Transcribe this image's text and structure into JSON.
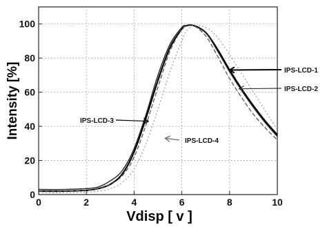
{
  "chart_data": {
    "type": "line",
    "xlabel": "Vdisp [ v ]",
    "ylabel": "Intensity [%]",
    "xlim": [
      0,
      10
    ],
    "ylim": [
      0,
      110
    ],
    "x_ticks": [
      0,
      2,
      4,
      6,
      8,
      10
    ],
    "y_ticks": [
      0,
      20,
      40,
      60,
      80,
      100
    ],
    "grid": true,
    "series": [
      {
        "name": "IPS-LCD-1",
        "color": "#000000",
        "x": [
          0,
          1,
          2,
          2.5,
          3,
          3.5,
          4,
          4.5,
          5,
          5.5,
          6,
          6.2,
          6.5,
          7,
          7.5,
          8,
          8.5,
          9,
          9.5,
          10
        ],
        "values": [
          2,
          2,
          2.5,
          3.5,
          6,
          12,
          25,
          45,
          67,
          86,
          97,
          99,
          99,
          95,
          85,
          73,
          62,
          52,
          43,
          35
        ]
      },
      {
        "name": "IPS-LCD-2",
        "color": "#555555",
        "x": [
          0,
          1,
          2,
          2.5,
          3,
          3.5,
          4,
          4.5,
          5,
          5.5,
          6,
          6.2,
          6.5,
          7,
          7.5,
          8,
          8.5,
          9,
          9.5,
          10
        ],
        "values": [
          2,
          2,
          2.5,
          3.5,
          6,
          11,
          22,
          41,
          63,
          84,
          97,
          99,
          99,
          93,
          81,
          68,
          57,
          47,
          39,
          32
        ]
      },
      {
        "name": "IPS-LCD-3",
        "color": "#222222",
        "x": [
          0,
          1,
          2,
          2.5,
          3,
          3.5,
          4,
          4.5,
          5,
          5.5,
          6,
          6.2,
          6.5,
          7,
          7.5,
          8,
          8.5,
          9,
          9.5,
          10
        ],
        "values": [
          3,
          3,
          3.5,
          4.5,
          8,
          14,
          27,
          47,
          70,
          88,
          98,
          99,
          99,
          95,
          84,
          72,
          61,
          51,
          42,
          34
        ]
      },
      {
        "name": "IPS-LCD-4",
        "color": "#9a9a9a",
        "x": [
          0,
          1,
          2,
          2.5,
          3,
          3.5,
          4,
          4.5,
          5,
          5.5,
          6,
          6.2,
          6.5,
          7,
          7.5,
          8,
          8.5,
          9,
          9.5,
          10
        ],
        "values": [
          1,
          1,
          1.5,
          2,
          3.5,
          7,
          15,
          30,
          50,
          72,
          90,
          96,
          99,
          98,
          92,
          82,
          71,
          60,
          49,
          38
        ]
      }
    ],
    "annotations": [
      {
        "text": "IPS-LCD-1",
        "arrow_to": [
          8.0,
          73
        ]
      },
      {
        "text": "IPS-LCD-2",
        "arrow_to": [
          8.4,
          62
        ]
      },
      {
        "text": "IPS-LCD-3",
        "arrow_to": [
          4.6,
          43
        ]
      },
      {
        "text": "IPS-LCD-4",
        "arrow_to": [
          5.3,
          33
        ]
      }
    ]
  }
}
